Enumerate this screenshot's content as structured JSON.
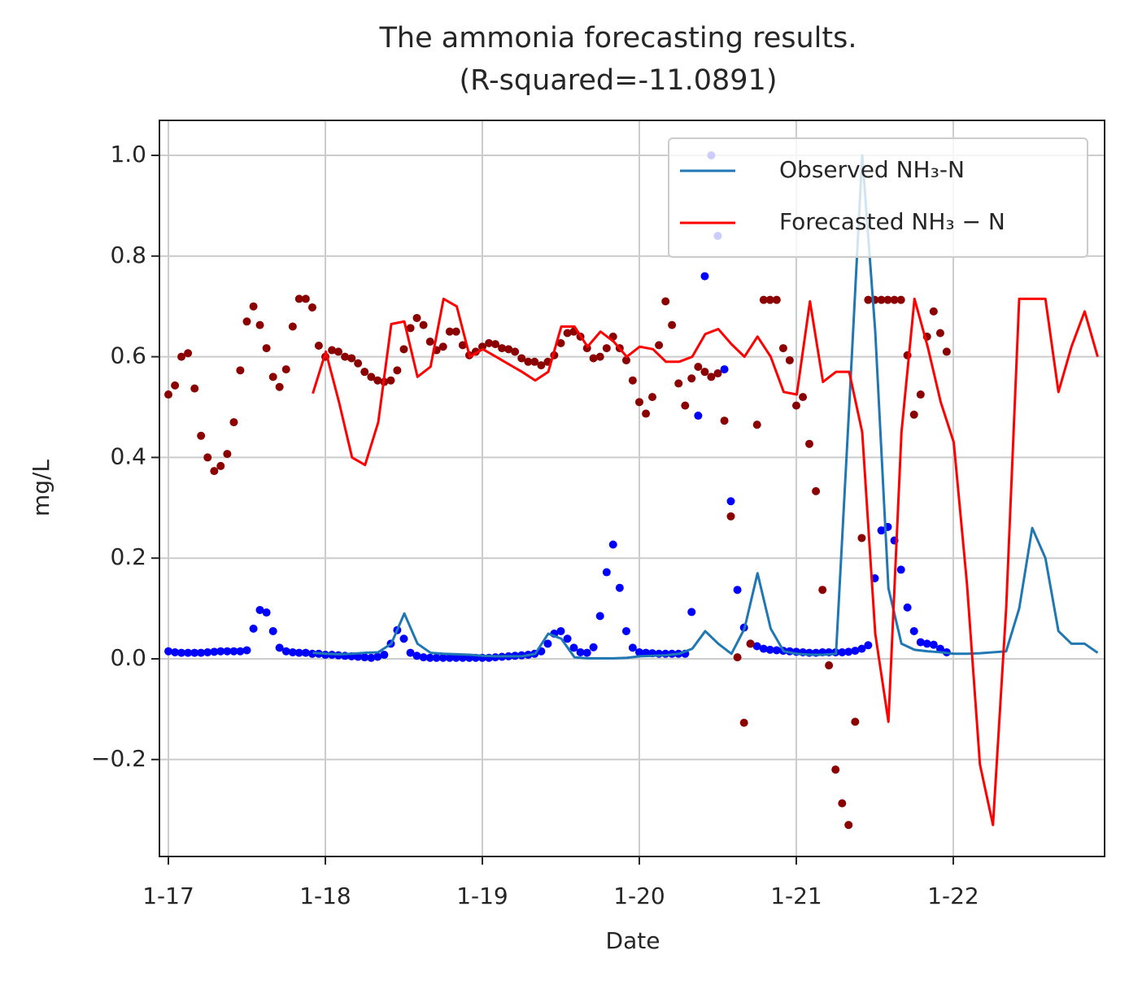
{
  "chart_data": {
    "type": "line",
    "title": [
      "The ammonia forecasting results.",
      "(R-squared=-11.0891)"
    ],
    "x_label": "Date",
    "y_label": "mg/L",
    "xlim": [
      16.943,
      22.964
    ],
    "ylim": [
      -0.3926,
      1.0695
    ],
    "xticks": [
      {
        "value": 17,
        "label": "1-17"
      },
      {
        "value": 18,
        "label": "1-18"
      },
      {
        "value": 19,
        "label": "1-19"
      },
      {
        "value": 20,
        "label": "1-20"
      },
      {
        "value": 21,
        "label": "1-21"
      },
      {
        "value": 22,
        "label": "1-22"
      }
    ],
    "yticks": [
      {
        "value": -0.2,
        "label": "−0.2"
      },
      {
        "value": 0,
        "label": "0.0"
      },
      0.2,
      0.4,
      0.6,
      0.8,
      {
        "value": 1,
        "label": "1.0"
      }
    ],
    "grid": true,
    "legend": "upper right",
    "series": [
      {
        "type": "scatter",
        "color": "#0000ff",
        "x": [
          17,
          17.042,
          17.083,
          17.125,
          17.167,
          17.208,
          17.25,
          17.292,
          17.333,
          17.375,
          17.417,
          17.458,
          17.5,
          17.542,
          17.583,
          17.625,
          17.667,
          17.708,
          17.75,
          17.792,
          17.833,
          17.875,
          17.917,
          17.958,
          18,
          18.042,
          18.083,
          18.125,
          18.167,
          18.208,
          18.25,
          18.292,
          18.333,
          18.375,
          18.417,
          18.458,
          18.5,
          18.542,
          18.583,
          18.625,
          18.667,
          18.708,
          18.75,
          18.792,
          18.833,
          18.875,
          18.917,
          18.958,
          19,
          19.042,
          19.083,
          19.125,
          19.167,
          19.208,
          19.25,
          19.292,
          19.333,
          19.375,
          19.417,
          19.458,
          19.5,
          19.542,
          19.583,
          19.625,
          19.667,
          19.708,
          19.75,
          19.792,
          19.833,
          19.875,
          19.917,
          19.958,
          20,
          20.042,
          20.083,
          20.125,
          20.167,
          20.208,
          20.25,
          20.292,
          20.333,
          20.375,
          20.417,
          20.458,
          20.5,
          20.542,
          20.583,
          20.625,
          20.667,
          20.708,
          20.75,
          20.792,
          20.833,
          20.875,
          20.917,
          20.958,
          21,
          21.042,
          21.083,
          21.125,
          21.167,
          21.208,
          21.25,
          21.292,
          21.333,
          21.375,
          21.417,
          21.458,
          21.5,
          21.542,
          21.583,
          21.625,
          21.667,
          21.708,
          21.75,
          21.792,
          21.833,
          21.875,
          21.917,
          21.958
        ],
        "values": [
          0.015,
          0.013,
          0.012,
          0.012,
          0.012,
          0.012,
          0.013,
          0.014,
          0.015,
          0.015,
          0.015,
          0.015,
          0.017,
          0.06,
          0.097,
          0.092,
          0.055,
          0.022,
          0.015,
          0.013,
          0.012,
          0.012,
          0.01,
          0.01,
          0.008,
          0.008,
          0.007,
          0.006,
          0.005,
          0.004,
          0.003,
          0.002,
          0.004,
          0.008,
          0.03,
          0.057,
          0.04,
          0.012,
          0.006,
          0.003,
          0.002,
          0.002,
          0.002,
          0.002,
          0.002,
          0.002,
          0.002,
          0.002,
          0.002,
          0.002,
          0.003,
          0.004,
          0.005,
          0.006,
          0.007,
          0.008,
          0.01,
          0.015,
          0.03,
          0.05,
          0.055,
          0.04,
          0.022,
          0.013,
          0.012,
          0.023,
          0.085,
          0.172,
          0.227,
          0.141,
          0.055,
          0.022,
          0.013,
          0.012,
          0.011,
          0.01,
          0.01,
          0.01,
          0.01,
          0.01,
          0.093,
          0.483,
          0.76,
          1.0,
          0.84,
          0.575,
          0.313,
          0.137,
          0.062,
          0.03,
          0.025,
          0.02,
          0.018,
          0.017,
          0.016,
          0.015,
          0.014,
          0.013,
          0.012,
          0.012,
          0.013,
          0.013,
          0.013,
          0.013,
          0.014,
          0.016,
          0.02,
          0.027,
          0.16,
          0.255,
          0.262,
          0.235,
          0.177,
          0.102,
          0.055,
          0.033,
          0.03,
          0.028,
          0.02,
          0.013
        ]
      },
      {
        "type": "scatter",
        "color": "#8b0000",
        "x": [
          17,
          17.042,
          17.083,
          17.125,
          17.167,
          17.208,
          17.25,
          17.292,
          17.333,
          17.375,
          17.417,
          17.458,
          17.5,
          17.542,
          17.583,
          17.625,
          17.667,
          17.708,
          17.75,
          17.792,
          17.833,
          17.875,
          17.917,
          17.958,
          18,
          18.042,
          18.083,
          18.125,
          18.167,
          18.208,
          18.25,
          18.292,
          18.333,
          18.375,
          18.417,
          18.458,
          18.5,
          18.542,
          18.583,
          18.625,
          18.667,
          18.708,
          18.75,
          18.792,
          18.833,
          18.875,
          18.917,
          18.958,
          19,
          19.042,
          19.083,
          19.125,
          19.167,
          19.208,
          19.25,
          19.292,
          19.333,
          19.375,
          19.417,
          19.458,
          19.5,
          19.542,
          19.583,
          19.625,
          19.667,
          19.708,
          19.75,
          19.792,
          19.833,
          19.875,
          19.917,
          19.958,
          20,
          20.042,
          20.083,
          20.125,
          20.167,
          20.208,
          20.25,
          20.292,
          20.333,
          20.375,
          20.417,
          20.458,
          20.5,
          20.542,
          20.583,
          20.625,
          20.667,
          20.708,
          20.75,
          20.792,
          20.833,
          20.875,
          20.917,
          20.958,
          21,
          21.042,
          21.083,
          21.125,
          21.167,
          21.208,
          21.25,
          21.292,
          21.333,
          21.375,
          21.417,
          21.458,
          21.5,
          21.542,
          21.583,
          21.625,
          21.667,
          21.708,
          21.75,
          21.792,
          21.833,
          21.875,
          21.917,
          21.958
        ],
        "values": [
          0.525,
          0.543,
          0.6,
          0.607,
          0.537,
          0.443,
          0.4,
          0.373,
          0.383,
          0.407,
          0.47,
          0.573,
          0.67,
          0.7,
          0.663,
          0.617,
          0.56,
          0.54,
          0.575,
          0.66,
          0.715,
          0.715,
          0.698,
          0.622,
          0.6,
          0.613,
          0.61,
          0.6,
          0.597,
          0.587,
          0.57,
          0.56,
          0.553,
          0.55,
          0.553,
          0.573,
          0.615,
          0.657,
          0.677,
          0.663,
          0.63,
          0.613,
          0.62,
          0.65,
          0.65,
          0.623,
          0.603,
          0.61,
          0.62,
          0.627,
          0.625,
          0.617,
          0.615,
          0.61,
          0.597,
          0.59,
          0.59,
          0.583,
          0.59,
          0.603,
          0.627,
          0.647,
          0.65,
          0.64,
          0.617,
          0.597,
          0.6,
          0.617,
          0.64,
          0.617,
          0.593,
          0.553,
          0.51,
          0.487,
          0.52,
          0.623,
          0.71,
          0.663,
          0.547,
          0.503,
          0.557,
          0.58,
          0.57,
          0.56,
          0.567,
          0.473,
          0.283,
          0.003,
          -0.127,
          0.03,
          0.465,
          0.713,
          0.713,
          0.713,
          0.617,
          0.593,
          0.503,
          0.52,
          0.427,
          0.333,
          0.137,
          -0.013,
          -0.22,
          -0.287,
          -0.33,
          -0.125,
          0.24,
          0.713,
          0.713,
          0.713,
          0.713,
          0.713,
          0.713,
          0.603,
          0.485,
          0.525,
          0.64,
          0.69,
          0.647,
          0.61
        ]
      },
      {
        "type": "line",
        "name": "Observed NH₃-N",
        "color": "#1f77b4",
        "x": [
          17.92,
          18.003,
          18.087,
          18.17,
          18.253,
          18.337,
          18.42,
          18.503,
          18.587,
          18.67,
          18.753,
          18.837,
          18.92,
          19.003,
          19.087,
          19.17,
          19.253,
          19.337,
          19.42,
          19.503,
          19.587,
          19.67,
          19.753,
          19.837,
          19.92,
          20.003,
          20.087,
          20.17,
          20.253,
          20.337,
          20.42,
          20.503,
          20.587,
          20.67,
          20.753,
          20.837,
          20.92,
          21.003,
          21.087,
          21.17,
          21.253,
          21.337,
          21.42,
          21.503,
          21.587,
          21.67,
          21.753,
          21.837,
          21.92,
          22.003,
          22.087,
          22.17,
          22.253,
          22.337,
          22.42,
          22.503,
          22.587,
          22.67,
          22.753,
          22.837,
          22.92
        ],
        "values": [
          0.012,
          0.01,
          0.009,
          0.01,
          0.012,
          0.013,
          0.03,
          0.09,
          0.03,
          0.012,
          0.01,
          0.009,
          0.008,
          0.006,
          0.005,
          0.005,
          0.005,
          0.01,
          0.05,
          0.04,
          0.003,
          0.001,
          0.001,
          0.001,
          0.002,
          0.005,
          0.006,
          0.007,
          0.01,
          0.02,
          0.055,
          0.03,
          0.01,
          0.06,
          0.17,
          0.06,
          0.015,
          0.01,
          0.008,
          0.008,
          0.01,
          0.5,
          1.0,
          0.65,
          0.14,
          0.03,
          0.018,
          0.015,
          0.013,
          0.01,
          0.01,
          0.011,
          0.013,
          0.015,
          0.1,
          0.26,
          0.2,
          0.055,
          0.03,
          0.03,
          0.012
        ]
      },
      {
        "type": "line",
        "name": "Forecasted NH₃ − N",
        "color": "#ff0000",
        "x": [
          17.92,
          18.003,
          18.087,
          18.17,
          18.253,
          18.337,
          18.42,
          18.503,
          18.587,
          18.67,
          18.753,
          18.837,
          18.92,
          19.003,
          19.087,
          19.17,
          19.253,
          19.337,
          19.42,
          19.503,
          19.587,
          19.67,
          19.753,
          19.837,
          19.92,
          20.003,
          20.087,
          20.17,
          20.253,
          20.337,
          20.42,
          20.503,
          20.587,
          20.67,
          20.753,
          20.837,
          20.92,
          21.003,
          21.087,
          21.17,
          21.253,
          21.337,
          21.42,
          21.503,
          21.587,
          21.67,
          21.753,
          21.837,
          21.92,
          22.003,
          22.087,
          22.17,
          22.253,
          22.337,
          22.42,
          22.503,
          22.587,
          22.67,
          22.753,
          22.837,
          22.92
        ],
        "values": [
          0.527,
          0.61,
          0.51,
          0.4,
          0.385,
          0.47,
          0.665,
          0.67,
          0.56,
          0.58,
          0.715,
          0.7,
          0.6,
          0.615,
          0.6,
          0.585,
          0.57,
          0.553,
          0.57,
          0.66,
          0.66,
          0.62,
          0.65,
          0.63,
          0.6,
          0.62,
          0.615,
          0.59,
          0.59,
          0.6,
          0.645,
          0.655,
          0.625,
          0.6,
          0.64,
          0.6,
          0.53,
          0.525,
          0.71,
          0.55,
          0.57,
          0.57,
          0.45,
          0.05,
          -0.125,
          0.45,
          0.715,
          0.62,
          0.51,
          0.43,
          0.15,
          -0.21,
          -0.33,
          0.1,
          0.715,
          0.715,
          0.715,
          0.53,
          0.62,
          0.69,
          0.6
        ]
      }
    ]
  }
}
